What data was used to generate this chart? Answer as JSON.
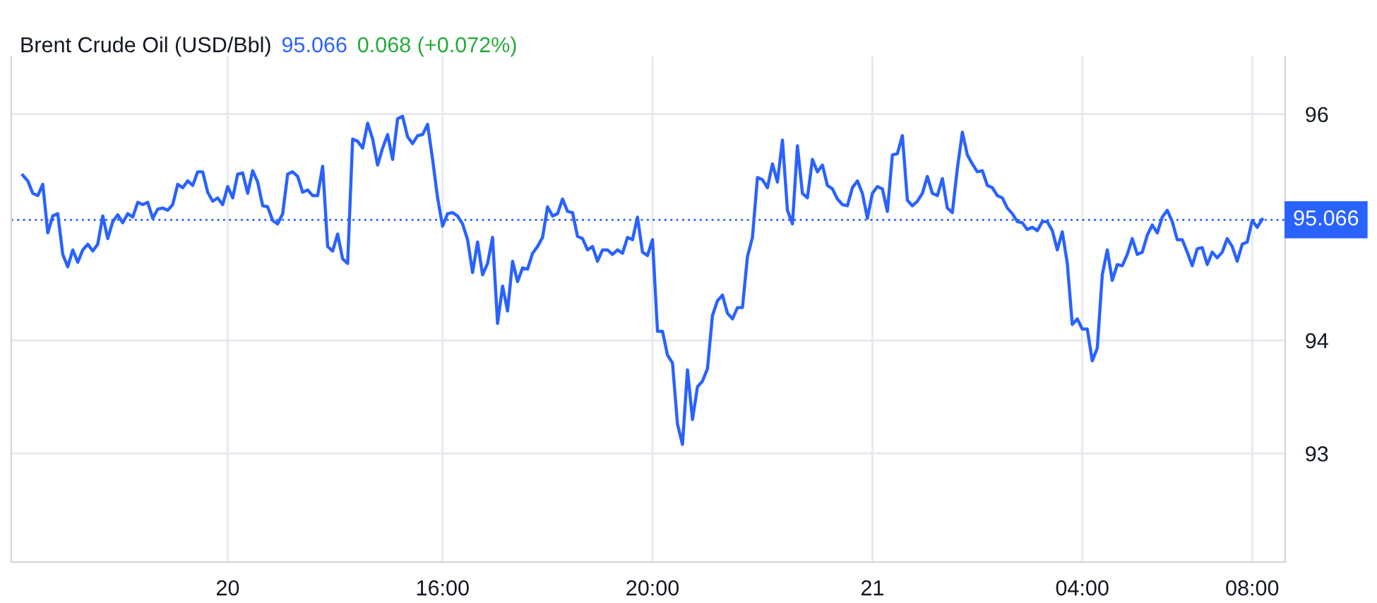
{
  "chart_data": {
    "type": "line",
    "title": "Brent Crude Oil (USD/Bbl)",
    "annotations": [
      "95.066",
      "0.068 (+0.072%)"
    ],
    "categories": [
      null,
      null,
      null,
      null,
      null,
      null,
      null,
      null,
      null,
      null,
      null,
      null,
      null,
      null,
      null,
      null,
      null,
      null,
      null,
      null,
      null,
      null,
      null,
      null,
      null,
      null,
      null,
      null,
      null,
      null,
      null,
      null,
      null,
      null,
      null,
      null,
      null,
      null,
      null,
      null,
      null,
      "20",
      null,
      null,
      null,
      null,
      null,
      null,
      null,
      null,
      null,
      null,
      null,
      null,
      null,
      null,
      null,
      null,
      null,
      null,
      null,
      null,
      null,
      null,
      null,
      null,
      null,
      null,
      null,
      null,
      null,
      null,
      null,
      null,
      null,
      null,
      null,
      null,
      null,
      null,
      null,
      null,
      null,
      null,
      "16:00",
      null,
      null,
      null,
      null,
      null,
      null,
      null,
      null,
      null,
      null,
      null,
      null,
      null,
      null,
      null,
      null,
      null,
      null,
      null,
      null,
      null,
      null,
      null,
      null,
      null,
      null,
      null,
      null,
      null,
      null,
      null,
      null,
      null,
      null,
      null,
      null,
      null,
      null,
      null,
      null,
      null,
      "20:00",
      null,
      null,
      null,
      null,
      null,
      null,
      null,
      null,
      null,
      null,
      null,
      null,
      null,
      null,
      null,
      null,
      null,
      null,
      null,
      null,
      null,
      null,
      null,
      null,
      null,
      null,
      null,
      null,
      null,
      null,
      null,
      null,
      null,
      null,
      null,
      null,
      null,
      null,
      null,
      null,
      null,
      null,
      null,
      "21",
      null,
      null,
      null,
      null,
      null,
      null,
      null,
      null,
      null,
      null,
      null,
      null,
      null,
      null,
      null,
      null,
      null,
      null,
      null,
      null,
      null,
      null,
      null,
      null,
      null,
      null,
      null,
      null,
      null,
      null,
      null,
      null,
      null,
      null,
      null,
      null,
      null,
      null,
      null,
      null,
      null,
      "04:00",
      null,
      null,
      null,
      null,
      null,
      null,
      null,
      null,
      null,
      null,
      null,
      null,
      null,
      null,
      null,
      null,
      null,
      null,
      null,
      null,
      null,
      null,
      null,
      null,
      null,
      null,
      null,
      null,
      null,
      null,
      null,
      null,
      null,
      "08:00",
      null,
      null
    ],
    "series": [
      {
        "color": "#2962ff",
        "values": [
          95.46,
          95.41,
          95.3,
          95.28,
          95.38,
          94.95,
          95.1,
          95.12,
          94.76,
          94.65,
          94.8,
          94.69,
          94.8,
          94.85,
          94.79,
          94.85,
          95.1,
          94.9,
          95.05,
          95.11,
          95.04,
          95.12,
          95.09,
          95.22,
          95.2,
          95.22,
          95.08,
          95.16,
          95.17,
          95.15,
          95.2,
          95.38,
          95.35,
          95.41,
          95.37,
          95.49,
          95.49,
          95.31,
          95.23,
          95.26,
          95.2,
          95.36,
          95.26,
          95.47,
          95.48,
          95.3,
          95.5,
          95.4,
          95.19,
          95.18,
          95.06,
          95.03,
          95.12,
          95.47,
          95.49,
          95.45,
          95.31,
          95.33,
          95.28,
          95.28,
          95.54,
          94.83,
          94.79,
          94.94,
          94.72,
          94.68,
          95.78,
          95.76,
          95.7,
          95.92,
          95.78,
          95.55,
          95.7,
          95.82,
          95.6,
          95.96,
          95.98,
          95.8,
          95.74,
          95.81,
          95.82,
          95.91,
          95.6,
          95.26,
          95.01,
          95.12,
          95.13,
          95.1,
          95.03,
          94.89,
          94.6,
          94.87,
          94.58,
          94.68,
          94.91,
          94.15,
          94.48,
          94.26,
          94.7,
          94.52,
          94.64,
          94.63,
          94.77,
          94.83,
          94.91,
          95.18,
          95.1,
          95.12,
          95.25,
          95.14,
          95.13,
          94.92,
          94.9,
          94.8,
          94.83,
          94.7,
          94.8,
          94.8,
          94.76,
          94.8,
          94.77,
          94.91,
          94.89,
          95.09,
          94.78,
          94.75,
          94.89,
          94.08,
          94.08,
          93.87,
          93.8,
          93.26,
          93.08,
          93.74,
          93.3,
          93.59,
          93.64,
          93.75,
          94.22,
          94.35,
          94.4,
          94.24,
          94.19,
          94.29,
          94.29,
          94.74,
          94.91,
          95.44,
          95.42,
          95.35,
          95.56,
          95.4,
          95.77,
          95.15,
          95.03,
          95.72,
          95.3,
          95.26,
          95.6,
          95.49,
          95.55,
          95.37,
          95.34,
          95.25,
          95.2,
          95.19,
          95.35,
          95.41,
          95.3,
          95.08,
          95.3,
          95.36,
          95.34,
          95.14,
          95.64,
          95.65,
          95.81,
          95.24,
          95.19,
          95.23,
          95.3,
          95.45,
          95.3,
          95.28,
          95.43,
          95.17,
          95.13,
          95.52,
          95.84,
          95.64,
          95.56,
          95.49,
          95.5,
          95.37,
          95.35,
          95.28,
          95.26,
          95.17,
          95.12,
          95.05,
          95.04,
          94.98,
          95.0,
          94.97,
          95.05,
          95.05,
          94.97,
          94.8,
          94.96,
          94.68,
          94.14,
          94.19,
          94.1,
          94.1,
          93.82,
          93.93,
          94.58,
          94.8,
          94.53,
          94.67,
          94.66,
          94.76,
          94.9,
          94.76,
          94.78,
          94.93,
          95.02,
          94.95,
          95.09,
          95.15,
          95.05,
          94.89,
          94.89,
          94.78,
          94.66,
          94.81,
          94.82,
          94.67,
          94.78,
          94.73,
          94.78,
          94.9,
          94.83,
          94.7,
          94.85,
          94.87,
          95.06,
          95.0,
          95.07
        ]
      }
    ],
    "ylim": [
      92.04,
      96.51
    ],
    "yticks": [
      93,
      94,
      96
    ],
    "ref_lines": [
      {
        "axis": "y",
        "value": 95.066,
        "label": "95.066",
        "color": "#2962ff",
        "line_style": "dotted"
      }
    ],
    "grid": true,
    "legend": false,
    "marker": "none",
    "line_style": "solid"
  }
}
